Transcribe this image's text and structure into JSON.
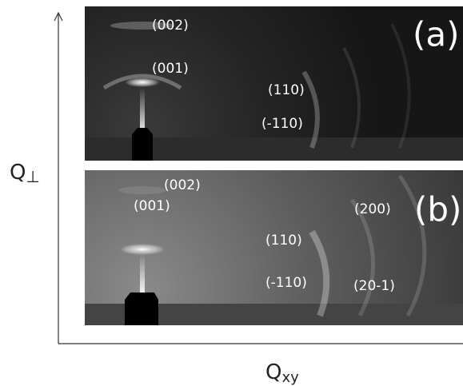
{
  "axes": {
    "y_label": {
      "main": "Q",
      "subscript": "⊥"
    },
    "x_label": {
      "main": "Q",
      "subscript": "xy"
    }
  },
  "panels": [
    {
      "tag": "(a)",
      "peaks": [
        "(002)",
        "(001)",
        "(110)",
        "(-110)"
      ]
    },
    {
      "tag": "(b)",
      "peaks": [
        "(002)",
        "(001)",
        "(110)",
        "(-110)",
        "(200)",
        "(20-1)"
      ]
    }
  ]
}
